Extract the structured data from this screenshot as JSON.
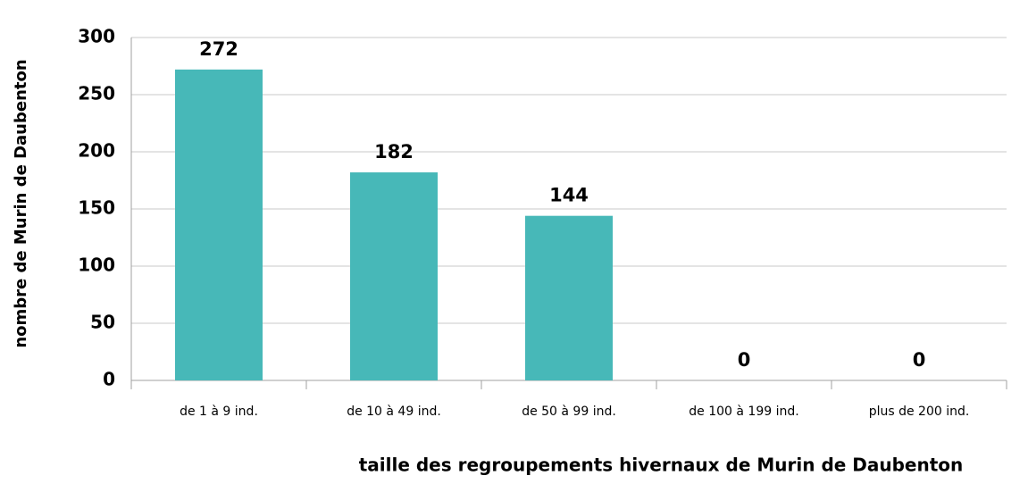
{
  "chart_data": {
    "type": "bar",
    "x_label": "taille des regroupements hivernaux de Murin de Daubenton",
    "y_label": "nombre de Murin de Daubenton",
    "categories": [
      "de 1 à 9 ind.",
      "de 10 à 49 ind.",
      "de 50 à 99 ind.",
      "de 100 à 199 ind.",
      "plus de 200 ind."
    ],
    "values": [
      272,
      182,
      144,
      0,
      0
    ],
    "color": "#47b8b8",
    "ylim": [
      0,
      300
    ],
    "yticks": [
      0,
      50,
      100,
      150,
      200,
      250,
      300
    ],
    "grid": true
  }
}
